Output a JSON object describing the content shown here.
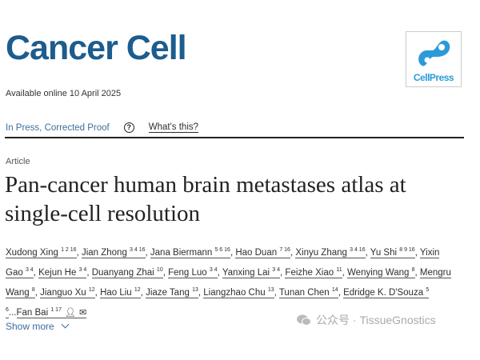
{
  "header": {
    "journal_title": "Cancer Cell",
    "available_online": "Available online 10 April 2025",
    "publisher_logo_text": "CellPress",
    "brand_color": "#1c5c8e",
    "logo_color": "#2b9ad8"
  },
  "status": {
    "label": "In Press, Corrected Proof",
    "help_icon": "question-circle-icon",
    "help_link": "What's this?"
  },
  "article": {
    "type": "Article",
    "title": "Pan-cancer human brain metastases atlas at single-cell resolution"
  },
  "authors": [
    {
      "name": "Xudong Xing",
      "sup": "1 2 16",
      "sep": ", "
    },
    {
      "name": "Jian Zhong",
      "sup": "3 4 16",
      "sep": ", "
    },
    {
      "name": "Jana Biermann",
      "sup": "5 6 16",
      "sep": ", "
    },
    {
      "name": "Hao Duan",
      "sup": "7 16",
      "sep": ", "
    },
    {
      "name": "Xinyu Zhang",
      "sup": "3 4 16",
      "sep": ", "
    },
    {
      "name": "Yu Shi",
      "sup": "8 9 16",
      "sep": ", "
    },
    {
      "name": "Yixin Gao",
      "sup": "3 4",
      "sep": ", "
    },
    {
      "name": "Kejun He",
      "sup": "3 4",
      "sep": ", "
    },
    {
      "name": "Duanyang Zhai",
      "sup": "10",
      "sep": ", "
    },
    {
      "name": "Feng Luo",
      "sup": "3 4",
      "sep": ", "
    },
    {
      "name": "Yanxing Lai",
      "sup": "3 4",
      "sep": ", "
    },
    {
      "name": "Feizhe Xiao",
      "sup": "11",
      "sep": ", "
    },
    {
      "name": "Wenying Wang",
      "sup": "8",
      "sep": ", "
    },
    {
      "name": "Mengru Wang",
      "sup": "8",
      "sep": ", "
    },
    {
      "name": "Jianguo Xu",
      "sup": "12",
      "sep": ", "
    },
    {
      "name": "Hao Liu",
      "sup": "12",
      "sep": ", "
    },
    {
      "name": "Jiaze Tang",
      "sup": "13",
      "sep": ", "
    },
    {
      "name": "Liangzhao Chu",
      "sup": "13",
      "sep": ", "
    },
    {
      "name": "Tunan Chen",
      "sup": "14",
      "sep": ", "
    },
    {
      "name": "Edridge K. D'Souza",
      "sup": "5 6",
      "sep": "..."
    },
    {
      "name": "Fan Bai",
      "sup": "1 17",
      "sep": "",
      "icons": [
        "person-icon",
        "envelope-icon"
      ]
    }
  ],
  "show_more": "Show more",
  "watermark": "公众号 · TissueGnostics"
}
